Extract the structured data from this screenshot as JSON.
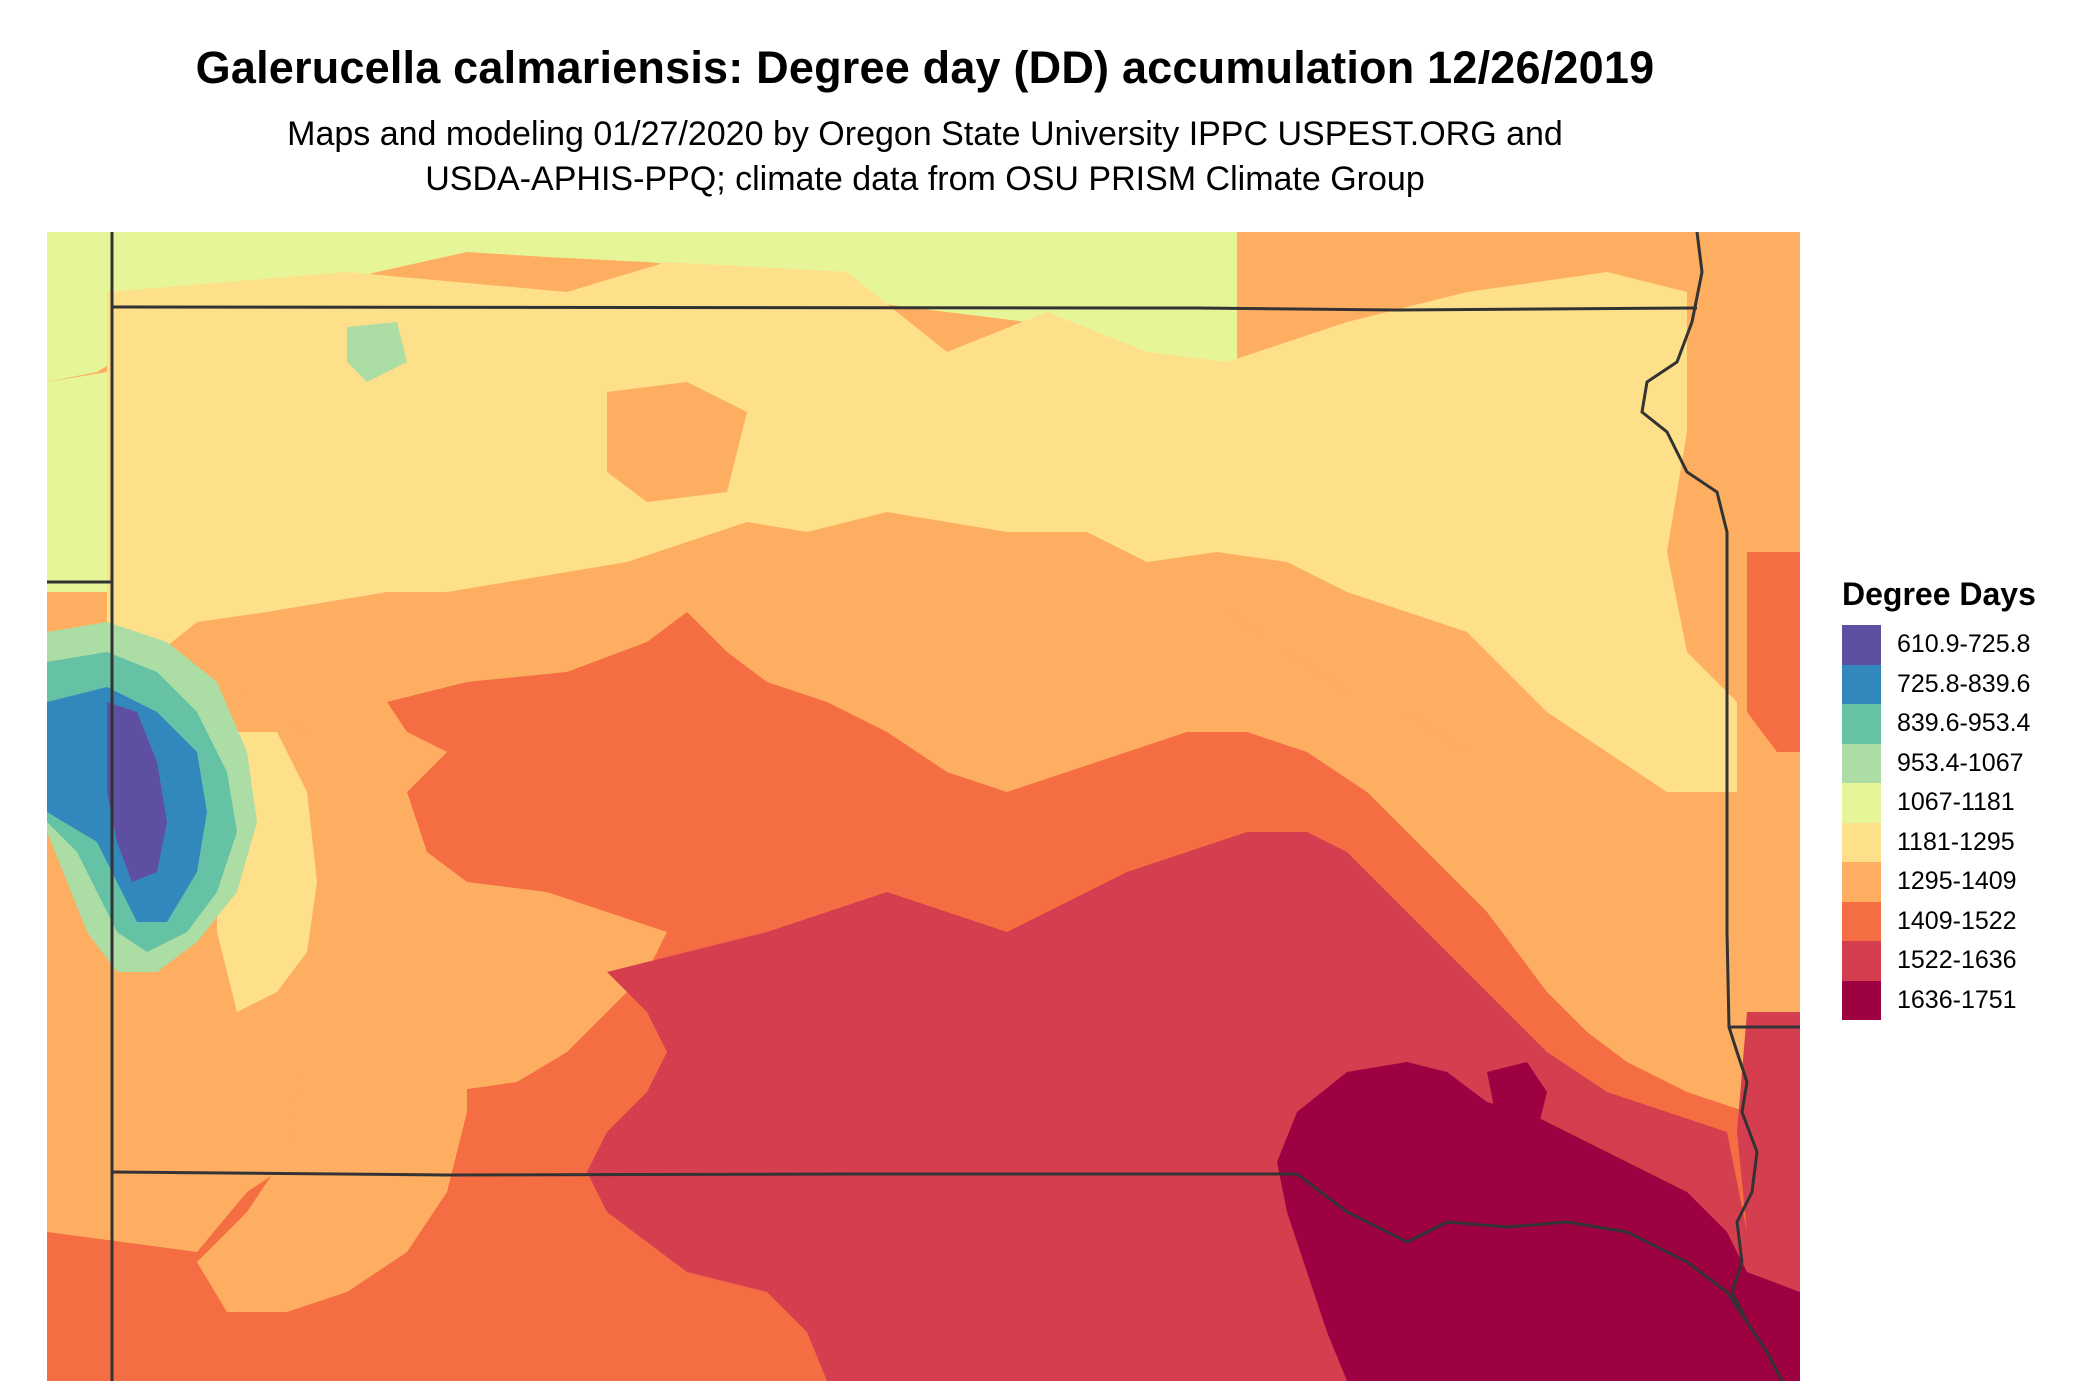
{
  "title": "Galerucella calmariensis: Degree day (DD) accumulation 12/26/2019",
  "subtitle_line1": "Maps and modeling 01/27/2020 by Oregon State University IPPC USPEST.ORG and",
  "subtitle_line2": "USDA-APHIS-PPQ; climate data from OSU PRISM Climate Group",
  "legend": {
    "title": "Degree Days",
    "items": [
      {
        "label": "610.9-725.8",
        "color": "#5e4fa2"
      },
      {
        "label": "725.8-839.6",
        "color": "#3288bd"
      },
      {
        "label": "839.6-953.4",
        "color": "#66c2a5"
      },
      {
        "label": "953.4-1067",
        "color": "#abdda4"
      },
      {
        "label": "1067-1181",
        "color": "#e6f598"
      },
      {
        "label": "1181-1295",
        "color": "#fee08b"
      },
      {
        "label": "1295-1409",
        "color": "#fdae61"
      },
      {
        "label": "1409-1522",
        "color": "#f46d43"
      },
      {
        "label": "1522-1636",
        "color": "#d53e4f"
      },
      {
        "label": "1636-1751",
        "color": "#9e0142"
      }
    ]
  }
}
